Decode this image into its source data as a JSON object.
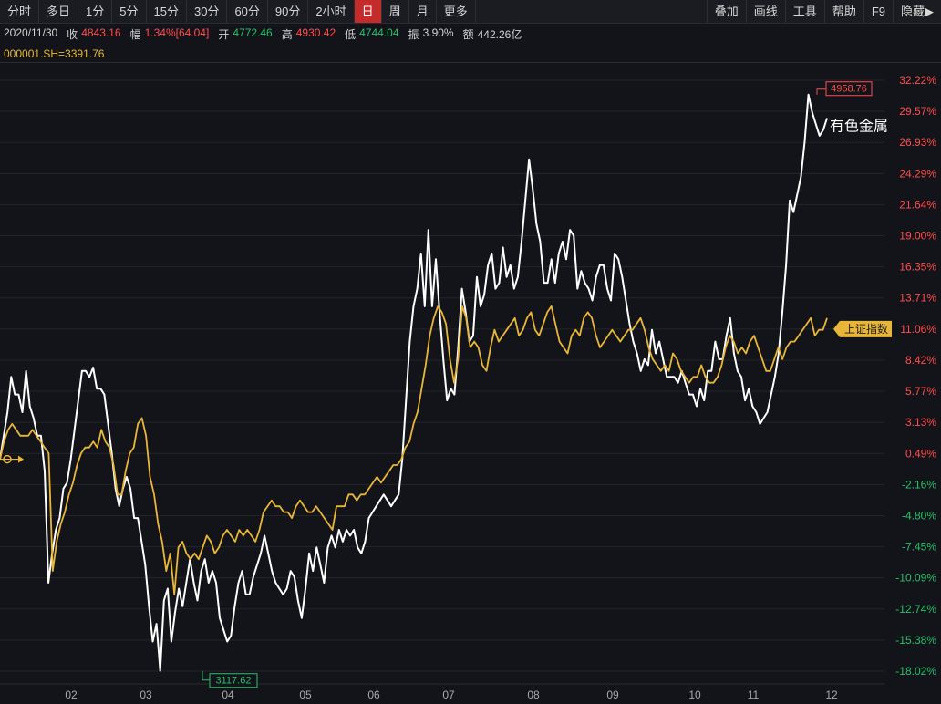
{
  "toolbar": {
    "left": [
      "分时",
      "多日",
      "1分",
      "5分",
      "15分",
      "30分",
      "60分",
      "90分",
      "2小时",
      "日",
      "周",
      "月",
      "更多"
    ],
    "active": "日",
    "right": [
      "叠加",
      "画线",
      "工具",
      "帮助",
      "F9",
      "隐藏▶"
    ]
  },
  "info": {
    "date": "2020/11/30",
    "close_label": "收",
    "close": "4843.16",
    "change_label": "幅",
    "change": "1.34%[64.04]",
    "open_label": "开",
    "open": "4772.46",
    "high_label": "高",
    "high": "4930.42",
    "low_label": "低",
    "low": "4744.04",
    "amp_label": "振",
    "amp": "3.90%",
    "amount_label": "额",
    "amount": "442.26亿"
  },
  "index_line": "000001.SH=3391.76",
  "colors": {
    "main": "#ffffff",
    "index": "#e8b73a",
    "up": "#ff4d4d",
    "down": "#2bbf6a",
    "bg": "#131419"
  },
  "chart_data": {
    "type": "line",
    "x_tick_labels": [
      "02",
      "03",
      "04",
      "05",
      "06",
      "07",
      "08",
      "09",
      "10",
      "11",
      "12"
    ],
    "y_tick_labels": [
      "32.22%",
      "29.57%",
      "26.93%",
      "24.29%",
      "21.64%",
      "19.00%",
      "16.35%",
      "13.71%",
      "11.06%",
      "8.42%",
      "5.77%",
      "3.13%",
      "0.49%",
      "-2.16%",
      "-4.80%",
      "-7.45%",
      "-10.09%",
      "-12.74%",
      "-15.38%",
      "-18.02%"
    ],
    "ylim": [
      -18.02,
      32.22
    ],
    "annotations": {
      "high": "4958.76",
      "low": "3117.62"
    },
    "series": [
      {
        "name": "有色金属",
        "color": "#ffffff",
        "values": [
          0.0,
          2.0,
          4.0,
          7.0,
          5.5,
          5.5,
          4.0,
          7.5,
          4.5,
          3.5,
          2.0,
          2.0,
          -1.0,
          -10.5,
          -8.0,
          -6.0,
          -5.0,
          -2.5,
          -2.0,
          0.0,
          2.5,
          5.0,
          7.5,
          7.5,
          7.0,
          7.8,
          6.0,
          6.0,
          5.5,
          3.0,
          0.5,
          -2.5,
          -4.0,
          -2.5,
          -1.5,
          -2.5,
          -5.0,
          -5.0,
          -7.0,
          -9.0,
          -12.5,
          -15.5,
          -14.0,
          -18.0,
          -12.0,
          -11.0,
          -15.5,
          -13.0,
          -11.0,
          -12.5,
          -10.5,
          -8.5,
          -10.5,
          -12.0,
          -9.5,
          -8.5,
          -10.5,
          -9.5,
          -10.5,
          -13.5,
          -14.5,
          -15.5,
          -15.0,
          -12.5,
          -10.5,
          -9.5,
          -11.5,
          -11.5,
          -10.0,
          -9.0,
          -8.0,
          -6.5,
          -8.0,
          -9.5,
          -10.5,
          -11.0,
          -11.5,
          -11.0,
          -9.5,
          -10.0,
          -12.0,
          -13.5,
          -11.0,
          -8.0,
          -9.5,
          -7.5,
          -9.0,
          -10.5,
          -7.5,
          -6.5,
          -7.5,
          -6.0,
          -7.0,
          -6.0,
          -6.5,
          -6.0,
          -7.5,
          -8.0,
          -7.0,
          -5.0,
          -4.5,
          -4.0,
          -3.5,
          -3.0,
          -3.5,
          -4.0,
          -3.5,
          -3.0,
          0.0,
          5.0,
          10.0,
          13.0,
          14.5,
          17.5,
          13.0,
          19.5,
          13.0,
          17.0,
          12.5,
          8.5,
          5.0,
          6.0,
          5.5,
          9.5,
          14.5,
          12.5,
          10.0,
          10.5,
          15.5,
          13.0,
          14.0,
          16.5,
          17.5,
          14.5,
          15.0,
          18.0,
          15.5,
          16.5,
          14.5,
          15.5,
          18.5,
          22.0,
          25.5,
          23.0,
          20.0,
          18.5,
          15.0,
          15.0,
          17.0,
          15.0,
          17.5,
          18.5,
          17.0,
          19.5,
          19.0,
          14.5,
          16.0,
          15.0,
          14.5,
          13.5,
          15.5,
          16.5,
          16.5,
          14.5,
          13.5,
          17.5,
          17.0,
          15.5,
          13.5,
          11.5,
          10.0,
          9.0,
          7.5,
          8.5,
          8.0,
          11.0,
          9.0,
          10.0,
          8.5,
          7.0,
          7.0,
          7.0,
          6.5,
          7.5,
          6.5,
          5.5,
          5.5,
          4.5,
          6.0,
          5.0,
          7.5,
          7.5,
          10.0,
          8.5,
          8.5,
          10.5,
          12.0,
          9.0,
          7.5,
          7.0,
          5.0,
          6.0,
          4.5,
          4.0,
          3.0,
          3.5,
          4.0,
          5.5,
          7.0,
          9.0,
          12.5,
          16.5,
          22.0,
          21.0,
          22.5,
          24.0,
          27.0,
          31.0,
          29.5,
          28.5,
          27.5,
          28.0,
          29.0
        ]
      },
      {
        "name": "上证指数",
        "color": "#e8b73a",
        "values": [
          0.0,
          1.5,
          2.5,
          3.0,
          2.5,
          2.0,
          2.0,
          2.0,
          2.5,
          2.0,
          1.5,
          1.0,
          0.5,
          -9.5,
          -7.0,
          -5.5,
          -4.5,
          -3.0,
          -2.0,
          -0.5,
          0.5,
          1.0,
          1.0,
          1.5,
          1.0,
          2.5,
          1.5,
          1.0,
          -0.5,
          -3.0,
          -3.0,
          -1.0,
          0.5,
          1.0,
          3.0,
          3.5,
          2.0,
          -1.5,
          -3.0,
          -5.5,
          -7.0,
          -9.5,
          -8.0,
          -11.5,
          -7.5,
          -7.0,
          -8.0,
          -8.5,
          -8.0,
          -8.5,
          -7.5,
          -6.5,
          -7.0,
          -8.0,
          -7.5,
          -6.5,
          -6.0,
          -6.5,
          -7.0,
          -6.0,
          -6.5,
          -6.0,
          -6.5,
          -7.0,
          -6.0,
          -4.5,
          -4.0,
          -3.5,
          -4.0,
          -4.0,
          -4.5,
          -4.5,
          -5.0,
          -4.0,
          -3.5,
          -4.0,
          -4.5,
          -4.5,
          -4.0,
          -4.5,
          -5.0,
          -5.5,
          -6.0,
          -4.0,
          -4.0,
          -4.0,
          -3.0,
          -3.0,
          -3.5,
          -3.0,
          -3.0,
          -2.5,
          -2.0,
          -1.5,
          -2.0,
          -1.5,
          -1.0,
          -0.5,
          -0.5,
          0.0,
          1.0,
          1.5,
          3.0,
          4.0,
          6.0,
          8.0,
          10.5,
          12.0,
          13.0,
          12.5,
          11.5,
          8.5,
          6.5,
          8.5,
          13.0,
          12.0,
          9.5,
          10.0,
          9.5,
          8.0,
          7.5,
          9.5,
          11.0,
          10.0,
          10.5,
          11.0,
          11.5,
          12.0,
          10.5,
          11.0,
          12.0,
          12.5,
          11.0,
          10.5,
          11.5,
          12.5,
          13.0,
          11.5,
          10.0,
          9.5,
          9.0,
          10.5,
          11.0,
          10.5,
          12.0,
          12.5,
          12.0,
          10.5,
          9.5,
          10.0,
          10.5,
          11.0,
          10.5,
          10.0,
          10.5,
          11.0,
          11.0,
          11.5,
          12.0,
          11.0,
          9.5,
          8.5,
          8.0,
          7.5,
          8.0,
          7.5,
          9.0,
          8.5,
          7.5,
          7.0,
          6.5,
          7.0,
          7.0,
          8.0,
          7.0,
          6.5,
          6.5,
          7.0,
          8.0,
          9.5,
          10.5,
          10.0,
          9.0,
          9.5,
          9.0,
          10.0,
          10.5,
          9.5,
          8.5,
          7.5,
          7.5,
          8.5,
          9.5,
          8.5,
          9.5,
          10.0,
          10.0,
          10.5,
          11.0,
          11.5,
          12.0,
          10.5,
          11.0,
          11.0,
          12.0
        ]
      }
    ]
  },
  "series_tag": "上证指数",
  "series_name_label": "有色金属"
}
